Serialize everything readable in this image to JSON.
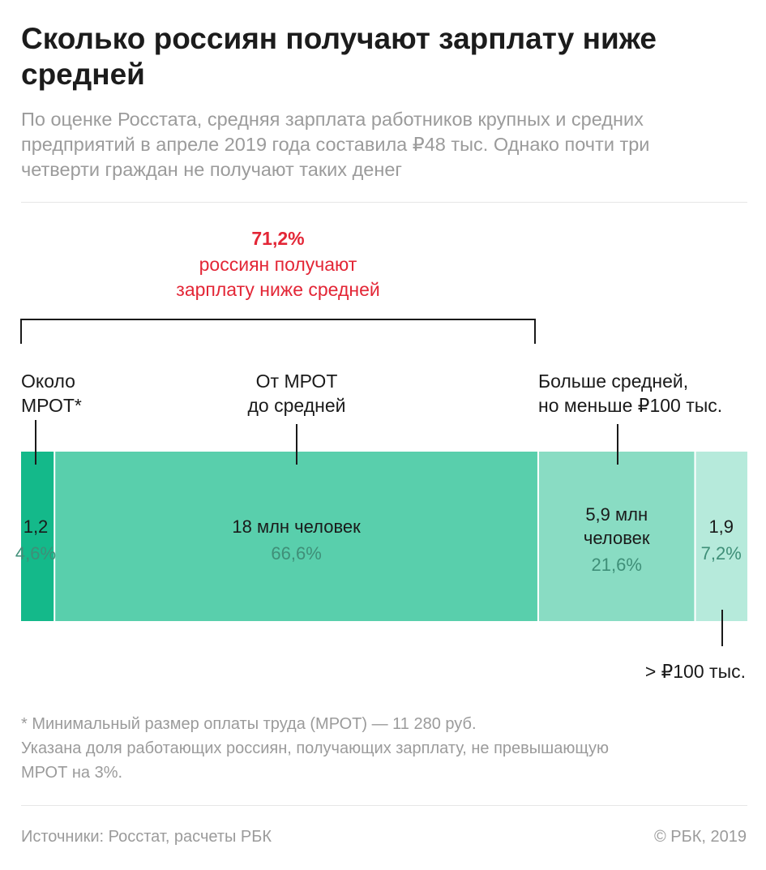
{
  "title": "Сколько россиян получают зарплату ниже средней",
  "subtitle_lines": [
    "По оценке Росстата, средняя зарплата работников крупных и средних",
    "предприятий в апреле 2019 года составила ₽48 тыс. Однако почти три",
    "четверти граждан не получают таких денег"
  ],
  "footnote_lines": [
    "* Минимальный размер оплаты труда (МРОТ) — 11 280 руб.",
    "Указана доля работающих россиян, получающих зарплату, не превышающую",
    "МРОТ на 3%."
  ],
  "source": "Источники: Росстат, расчеты РБК",
  "copyright": "© РБК, 2019",
  "colors": {
    "accent_red": "#e32636",
    "seg_1": "#14b98a",
    "seg_2": "#59cfac",
    "seg_3": "#89dcc3",
    "seg_4": "#b6eadb",
    "pct_text": "#3f8f78"
  },
  "chart_data": {
    "type": "bar",
    "orientation": "horizontal-stacked",
    "unit": "млн человек",
    "bracket": {
      "value": "71,2%",
      "label_lines": [
        "россиян получают",
        "зарплату ниже средней"
      ],
      "covers_segments": [
        0,
        1
      ]
    },
    "segments": [
      {
        "category_lines": [
          "Около",
          "МРОТ*"
        ],
        "value": 1.2,
        "percent": 4.6,
        "value_lines": [
          "1,2"
        ],
        "percent_label": "4,6%"
      },
      {
        "category_lines": [
          "От МРОТ",
          "до средней"
        ],
        "value": 18,
        "percent": 66.6,
        "value_lines": [
          "18 млн человек"
        ],
        "percent_label": "66,6%"
      },
      {
        "category_lines": [
          "Больше средней,",
          "но меньше ₽100 тыс."
        ],
        "value": 5.9,
        "percent": 21.6,
        "value_lines": [
          "5,9 млн",
          "человек"
        ],
        "percent_label": "21,6%"
      },
      {
        "category_lines": [
          "> ₽100 тыс."
        ],
        "value": 1.9,
        "percent": 7.2,
        "value_lines": [
          "1,9"
        ],
        "percent_label": "7,2%"
      }
    ]
  }
}
